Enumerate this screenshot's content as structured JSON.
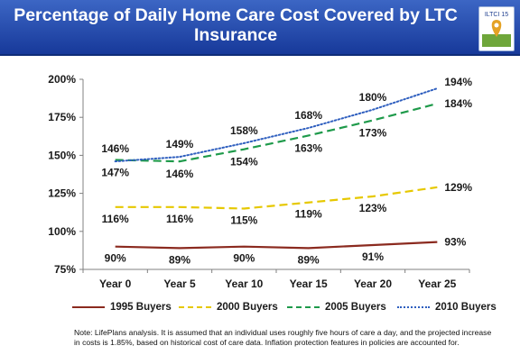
{
  "title": "Percentage of Daily Home Care Cost Covered by LTC Insurance",
  "badge": {
    "text": "ILTCI 15"
  },
  "chart_data": {
    "type": "line",
    "title": "Percentage of Daily Home Care Cost Covered by LTC Insurance",
    "categories": [
      "Year 0",
      "Year 5",
      "Year 10",
      "Year 15",
      "Year 20",
      "Year 25"
    ],
    "ylim": [
      75,
      200
    ],
    "yticks": [
      "75%",
      "100%",
      "125%",
      "150%",
      "175%",
      "200%"
    ],
    "ytick_values": [
      75,
      100,
      125,
      150,
      175,
      200
    ],
    "grid": false,
    "legend": "bottom",
    "series": [
      {
        "name": "1995 Buyers",
        "color": "#8b2a1f",
        "style": "solid",
        "values": [
          90,
          89,
          90,
          89,
          91,
          93
        ],
        "labels": [
          "90%",
          "89%",
          "90%",
          "89%",
          "91%",
          "93%"
        ]
      },
      {
        "name": "2000 Buyers",
        "color": "#e6c800",
        "style": "dashed",
        "values": [
          116,
          116,
          115,
          119,
          123,
          129
        ],
        "labels": [
          "116%",
          "116%",
          "115%",
          "119%",
          "123%",
          "129%"
        ]
      },
      {
        "name": "2005 Buyers",
        "color": "#1e9a4a",
        "style": "dashed",
        "values": [
          147,
          146,
          154,
          163,
          173,
          184
        ],
        "labels": [
          "147%",
          "146%",
          "154%",
          "163%",
          "173%",
          "184%"
        ]
      },
      {
        "name": "2010 Buyers",
        "color": "#2f5fbf",
        "style": "dotted",
        "values": [
          146,
          149,
          158,
          168,
          180,
          194
        ],
        "labels": [
          "146%",
          "149%",
          "158%",
          "168%",
          "180%",
          "194%"
        ]
      }
    ]
  },
  "note": "Note: LifePlans analysis. It is assumed that an individual uses roughly five hours of care a day, and the projected increase in costs is 1.85%, based on historical cost of care data. Inflation protection features in policies are accounted for."
}
